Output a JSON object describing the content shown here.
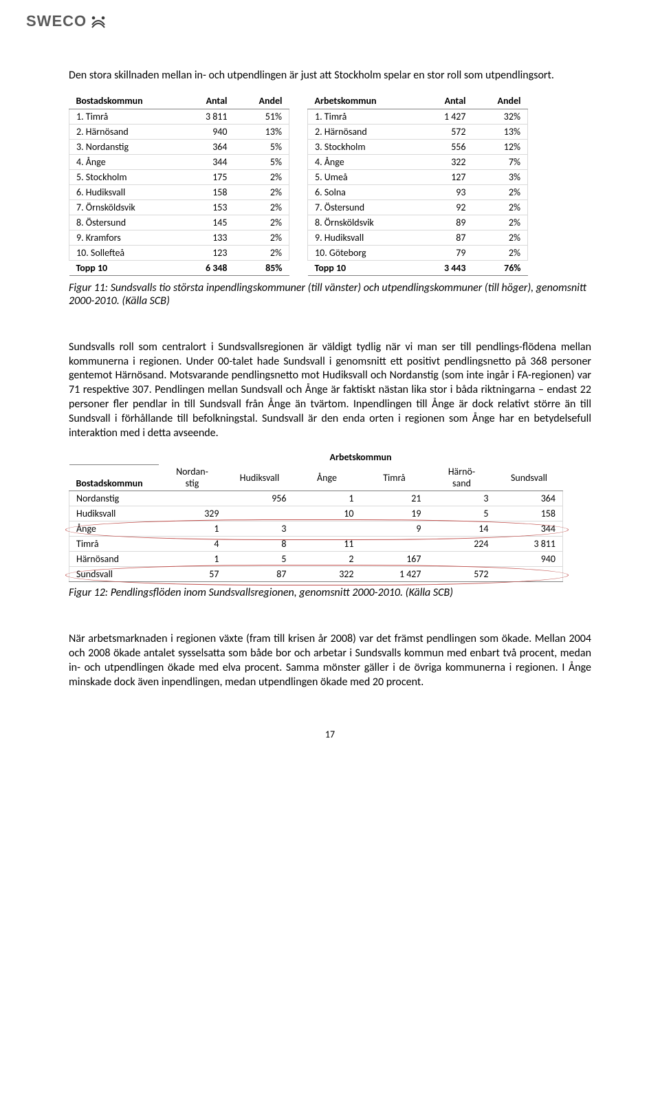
{
  "logo": {
    "text": "SWECO"
  },
  "intro": "Den stora skillnaden mellan in- och utpendlingen är just att Stockholm spelar en stor roll som utpendlingsort.",
  "table1": {
    "left": {
      "headers": [
        "Bostadskommun",
        "Antal",
        "Andel"
      ],
      "rows": [
        {
          "rank": "1.",
          "name": "Timrå",
          "antal": "3 811",
          "andel": "51%"
        },
        {
          "rank": "2.",
          "name": "Härnösand",
          "antal": "940",
          "andel": "13%"
        },
        {
          "rank": "3.",
          "name": "Nordanstig",
          "antal": "364",
          "andel": "5%"
        },
        {
          "rank": "4.",
          "name": "Ånge",
          "antal": "344",
          "andel": "5%"
        },
        {
          "rank": "5.",
          "name": "Stockholm",
          "antal": "175",
          "andel": "2%"
        },
        {
          "rank": "6.",
          "name": "Hudiksvall",
          "antal": "158",
          "andel": "2%"
        },
        {
          "rank": "7.",
          "name": "Örnsköldsvik",
          "antal": "153",
          "andel": "2%"
        },
        {
          "rank": "8.",
          "name": "Östersund",
          "antal": "145",
          "andel": "2%"
        },
        {
          "rank": "9.",
          "name": "Kramfors",
          "antal": "133",
          "andel": "2%"
        },
        {
          "rank": "10.",
          "name": "Sollefteå",
          "antal": "123",
          "andel": "2%"
        }
      ],
      "total": {
        "label": "Topp 10",
        "antal": "6 348",
        "andel": "85%"
      }
    },
    "right": {
      "headers": [
        "Arbetskommun",
        "Antal",
        "Andel"
      ],
      "rows": [
        {
          "rank": "1.",
          "name": "Timrå",
          "antal": "1 427",
          "andel": "32%"
        },
        {
          "rank": "2.",
          "name": "Härnösand",
          "antal": "572",
          "andel": "13%"
        },
        {
          "rank": "3.",
          "name": "Stockholm",
          "antal": "556",
          "andel": "12%"
        },
        {
          "rank": "4.",
          "name": "Ånge",
          "antal": "322",
          "andel": "7%"
        },
        {
          "rank": "5.",
          "name": "Umeå",
          "antal": "127",
          "andel": "3%"
        },
        {
          "rank": "6.",
          "name": "Solna",
          "antal": "93",
          "andel": "2%"
        },
        {
          "rank": "7.",
          "name": "Östersund",
          "antal": "92",
          "andel": "2%"
        },
        {
          "rank": "8.",
          "name": "Örnsköldsvik",
          "antal": "89",
          "andel": "2%"
        },
        {
          "rank": "9.",
          "name": "Hudiksvall",
          "antal": "87",
          "andel": "2%"
        },
        {
          "rank": "10.",
          "name": "Göteborg",
          "antal": "79",
          "andel": "2%"
        }
      ],
      "total": {
        "label": "Topp 10",
        "antal": "3 443",
        "andel": "76%"
      }
    }
  },
  "caption1": "Figur 11: Sundsvalls tio största inpendlingskommuner (till vänster) och utpendlingskommuner (till höger), genomsnitt 2000-2010. (Källa SCB)",
  "body2": "Sundsvalls roll som centralort i Sundsvallsregionen är väldigt tydlig när vi man ser till pendlings-flödena mellan kommunerna i regionen. Under 00-talet hade Sundsvall i genomsnitt ett positivt pendlingsnetto på 368 personer gentemot Härnösand. Motsvarande pendlingsnetto mot Hudiksvall och Nordanstig (som inte ingår i FA-regionen) var 71 respektive 307. Pendlingen mellan Sundsvall och Ånge är faktiskt nästan lika stor i båda riktningarna – endast 22 personer fler pendlar in till Sundsvall från Ånge än tvärtom. Inpendlingen till Ånge är dock relativt större än till Sundsvall i förhållande till befolkningstal. Sundsvall är den enda orten i regionen som Ånge har en betydelsefull interaktion med i detta avseende.",
  "table2": {
    "topLabel": "Arbetskommun",
    "rowHeaderLabel": "Bostadskommun",
    "cols": [
      "Nordan-stig",
      "Hudiksvall",
      "Ånge",
      "Timrå",
      "Härnö-sand",
      "Sundsvall"
    ],
    "rows": [
      {
        "name": "Nordanstig",
        "cells": [
          "",
          "956",
          "1",
          "21",
          "3",
          "364"
        ]
      },
      {
        "name": "Hudiksvall",
        "cells": [
          "329",
          "",
          "10",
          "19",
          "5",
          "158"
        ]
      },
      {
        "name": "Ånge",
        "cells": [
          "1",
          "3",
          "",
          "9",
          "14",
          "344"
        ]
      },
      {
        "name": "Timrå",
        "cells": [
          "4",
          "8",
          "11",
          "",
          "224",
          "3 811"
        ]
      },
      {
        "name": "Härnösand",
        "cells": [
          "1",
          "5",
          "2",
          "167",
          "",
          "940"
        ]
      },
      {
        "name": "Sundsvall",
        "cells": [
          "57",
          "87",
          "322",
          "1 427",
          "572",
          ""
        ]
      }
    ],
    "ringColor": "#c0504d"
  },
  "caption2": "Figur 12: Pendlingsflöden inom Sundsvallsregionen, genomsnitt 2000-2010. (Källa SCB)",
  "body3": "När arbetsmarknaden i regionen växte (fram till krisen år 2008) var det främst pendlingen som ökade. Mellan 2004 och 2008 ökade antalet sysselsatta som både bor och arbetar i Sundsvalls kommun med enbart två procent, medan in- och utpendlingen ökade med elva procent. Samma mönster gäller i de övriga kommunerna i regionen. I Ånge minskade dock även inpendlingen, medan utpendlingen ökade med 20 procent.",
  "pageNumber": "17"
}
